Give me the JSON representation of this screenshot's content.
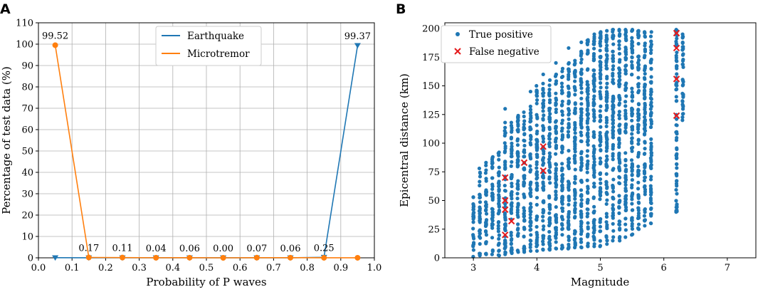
{
  "colors": {
    "earthquake": "#1f77b4",
    "microtremor": "#ff7f0e",
    "true_positive": "#1f77b4",
    "false_negative": "#e41a1c",
    "grid": "#b0b0b0"
  },
  "chart_data": [
    {
      "panel": "A",
      "type": "line",
      "title": "",
      "xlabel": "Probability of P waves",
      "ylabel": "Percentage of test data (%)",
      "xlim": [
        0.0,
        1.0
      ],
      "ylim": [
        0,
        110
      ],
      "grid": true,
      "legend_position": "top-center",
      "x_ticks": [
        "0.0",
        "0.1",
        "0.2",
        "0.3",
        "0.4",
        "0.5",
        "0.6",
        "0.7",
        "0.8",
        "0.9",
        "1.0"
      ],
      "y_ticks": [
        "0",
        "10",
        "20",
        "30",
        "40",
        "50",
        "60",
        "70",
        "80",
        "90",
        "100",
        "110"
      ],
      "x": [
        0.05,
        0.15,
        0.25,
        0.35,
        0.45,
        0.55,
        0.65,
        0.75,
        0.85,
        0.95
      ],
      "series": [
        {
          "name": "Earthquake",
          "marker": "triangle-down",
          "values": [
            0.05,
            0.02,
            0.02,
            0.02,
            0.02,
            0.02,
            0.02,
            0.02,
            0.25,
            99.37
          ]
        },
        {
          "name": "Microtremor",
          "marker": "circle",
          "values": [
            99.52,
            0.17,
            0.11,
            0.04,
            0.06,
            0.0,
            0.07,
            0.06,
            0.02,
            0.02
          ]
        }
      ],
      "data_labels": [
        {
          "x": 0.05,
          "y": 99.52,
          "text": "99.52"
        },
        {
          "x": 0.15,
          "y": 0.17,
          "text": "0.17"
        },
        {
          "x": 0.25,
          "y": 0.11,
          "text": "0.11"
        },
        {
          "x": 0.35,
          "y": 0.04,
          "text": "0.04"
        },
        {
          "x": 0.45,
          "y": 0.06,
          "text": "0.06"
        },
        {
          "x": 0.55,
          "y": 0.0,
          "text": "0.00"
        },
        {
          "x": 0.65,
          "y": 0.07,
          "text": "0.07"
        },
        {
          "x": 0.75,
          "y": 0.06,
          "text": "0.06"
        },
        {
          "x": 0.85,
          "y": 0.25,
          "text": "0.25"
        },
        {
          "x": 0.95,
          "y": 99.37,
          "text": "99.37"
        }
      ]
    },
    {
      "panel": "B",
      "type": "scatter",
      "title": "",
      "xlabel": "Magnitude",
      "ylabel": "Epicentral distance (km)",
      "xlim": [
        2.55,
        7.45
      ],
      "ylim": [
        0,
        205
      ],
      "grid": false,
      "legend_position": "top-left",
      "x_ticks": [
        "3",
        "4",
        "5",
        "6",
        "7"
      ],
      "y_ticks": [
        "0",
        "25",
        "50",
        "75",
        "100",
        "125",
        "150",
        "175",
        "200"
      ],
      "series": [
        {
          "name": "True positive",
          "marker": "circle",
          "columns": [
            {
              "x": 3.0,
              "ymin": 1,
              "ymax": 53
            },
            {
              "x": 3.1,
              "ymin": 2,
              "ymax": 78
            },
            {
              "x": 3.2,
              "ymin": 3,
              "ymax": 83
            },
            {
              "x": 3.3,
              "ymin": 3,
              "ymax": 88
            },
            {
              "x": 3.4,
              "ymin": 2,
              "ymax": 92
            },
            {
              "x": 3.5,
              "ymin": 3,
              "ymax": 118
            },
            {
              "x": 3.6,
              "ymin": 4,
              "ymax": 118
            },
            {
              "x": 3.7,
              "ymin": 5,
              "ymax": 124
            },
            {
              "x": 3.8,
              "ymin": 5,
              "ymax": 127
            },
            {
              "x": 3.9,
              "ymin": 6,
              "ymax": 132
            },
            {
              "x": 4.0,
              "ymin": 6,
              "ymax": 150
            },
            {
              "x": 4.1,
              "ymin": 7,
              "ymax": 152
            },
            {
              "x": 4.2,
              "ymin": 7,
              "ymax": 155
            },
            {
              "x": 4.3,
              "ymin": 8,
              "ymax": 160
            },
            {
              "x": 4.4,
              "ymin": 8,
              "ymax": 165
            },
            {
              "x": 4.5,
              "ymin": 8,
              "ymax": 170
            },
            {
              "x": 4.6,
              "ymin": 9,
              "ymax": 172
            },
            {
              "x": 4.7,
              "ymin": 9,
              "ymax": 180
            },
            {
              "x": 4.8,
              "ymin": 10,
              "ymax": 190
            },
            {
              "x": 4.9,
              "ymin": 10,
              "ymax": 195
            },
            {
              "x": 5.0,
              "ymin": 10,
              "ymax": 197
            },
            {
              "x": 5.1,
              "ymin": 12,
              "ymax": 198
            },
            {
              "x": 5.2,
              "ymin": 15,
              "ymax": 199
            },
            {
              "x": 5.3,
              "ymin": 15,
              "ymax": 199
            },
            {
              "x": 5.4,
              "ymin": 18,
              "ymax": 199
            },
            {
              "x": 5.5,
              "ymin": 20,
              "ymax": 199
            },
            {
              "x": 5.6,
              "ymin": 25,
              "ymax": 198
            },
            {
              "x": 5.7,
              "ymin": 28,
              "ymax": 197
            },
            {
              "x": 5.8,
              "ymin": 30,
              "ymax": 197
            },
            {
              "x": 6.2,
              "ymin": 40,
              "ymax": 199
            },
            {
              "x": 6.3,
              "ymin": 120,
              "ymax": 195
            }
          ],
          "outliers": [
            {
              "x": 3.5,
              "y": 130
            },
            {
              "x": 3.9,
              "y": 145
            },
            {
              "x": 4.1,
              "y": 160
            },
            {
              "x": 4.3,
              "y": 170
            },
            {
              "x": 4.5,
              "y": 183
            },
            {
              "x": 4.7,
              "y": 188
            }
          ]
        },
        {
          "name": "False negative",
          "marker": "x",
          "points": [
            {
              "x": 3.5,
              "y": 20
            },
            {
              "x": 3.5,
              "y": 42
            },
            {
              "x": 3.5,
              "y": 50
            },
            {
              "x": 3.5,
              "y": 70
            },
            {
              "x": 3.6,
              "y": 32
            },
            {
              "x": 3.8,
              "y": 83
            },
            {
              "x": 4.1,
              "y": 76
            },
            {
              "x": 4.1,
              "y": 97
            },
            {
              "x": 6.2,
              "y": 124
            },
            {
              "x": 6.2,
              "y": 156
            },
            {
              "x": 6.2,
              "y": 183
            },
            {
              "x": 6.2,
              "y": 196
            }
          ]
        }
      ]
    }
  ]
}
